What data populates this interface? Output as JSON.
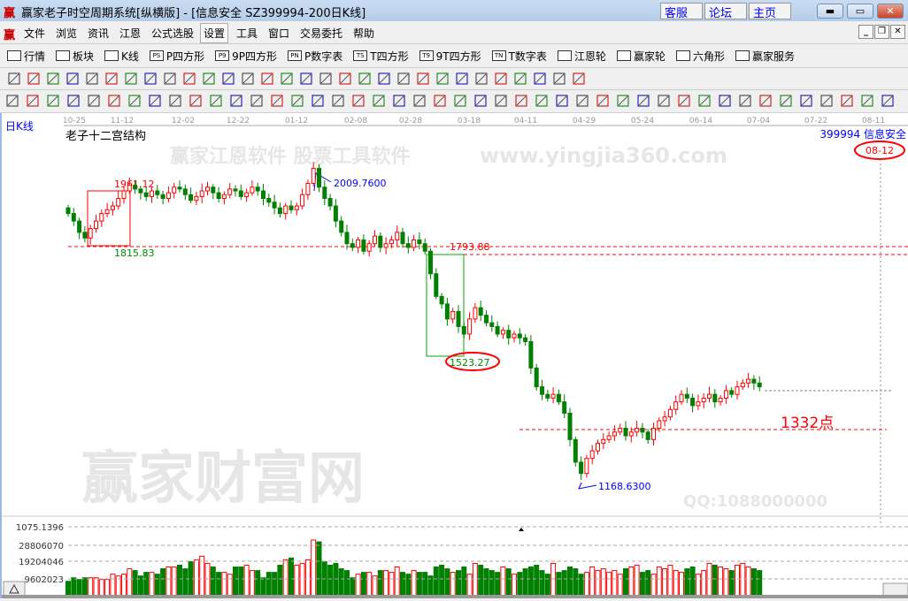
{
  "window": {
    "title": "赢家老子时空周期系统[纵横版] - [信息安全  SZ399994-200日K线]",
    "links": [
      "客服",
      "论坛",
      "主页"
    ],
    "logo": "赢"
  },
  "menu": [
    "文件",
    "浏览",
    "资讯",
    "江恩",
    "公式选股",
    "设置",
    "工具",
    "窗口",
    "交易委托",
    "帮助"
  ],
  "menu_selected": "设置",
  "toolbar1": [
    {
      "icon": "quote-table-icon",
      "label": "行情"
    },
    {
      "icon": "sector-icon",
      "label": "板块"
    },
    {
      "icon": "candlestick-icon",
      "label": "K线"
    },
    {
      "icon": "PS",
      "label": "P四方形"
    },
    {
      "icon": "P9",
      "label": "9P四方形"
    },
    {
      "icon": "PN",
      "label": "P数字表"
    },
    {
      "icon": "TS",
      "label": "T四方形"
    },
    {
      "icon": "T9",
      "label": "9T四方形"
    },
    {
      "icon": "TN",
      "label": "T数字表"
    },
    {
      "icon": "gann-wheel-icon",
      "label": "江恩轮"
    },
    {
      "icon": "big-wheel-icon",
      "label": "赢家轮"
    },
    {
      "icon": "hexagon-icon",
      "label": "六角形"
    },
    {
      "icon": "dollar-icon",
      "label": "赢家服务"
    }
  ],
  "chart": {
    "period_label": "日K线",
    "indicator_title": "老子十二宫结构",
    "symbol_label": "399994 信息安全",
    "cursor_date": "08-12",
    "date_ticks": [
      "10-25",
      "11-12",
      "12-02",
      "12-22",
      "01-12",
      "02-08",
      "02-28",
      "03-18",
      "04-11",
      "04-29",
      "05-24",
      "06-14",
      "07-04",
      "07-22",
      "08-11"
    ],
    "annotations": {
      "high1": "1961.12",
      "low1": "1815.83",
      "peak": "2009.7600",
      "high2": "1793.88",
      "low2": "1523.27",
      "bottom": "1168.6300",
      "target": "1332点"
    },
    "watermark": [
      "赢家财富网",
      "赢家江恩软件 股票工具软件",
      "www.yingjia360.com",
      "QQ:1088000000"
    ],
    "colors": {
      "up": "#ff0000",
      "down": "#008000",
      "annotation": "#ff0000",
      "label_blue": "#0000ff"
    }
  },
  "chart_data": {
    "type": "candlestick",
    "closes": [
      1880,
      1860,
      1830,
      1815,
      1840,
      1860,
      1880,
      1890,
      1900,
      1920,
      1940,
      1955,
      1945,
      1935,
      1925,
      1940,
      1930,
      1920,
      1935,
      1950,
      1945,
      1930,
      1915,
      1925,
      1940,
      1950,
      1935,
      1920,
      1930,
      1945,
      1940,
      1925,
      1935,
      1950,
      1940,
      1920,
      1910,
      1895,
      1880,
      1900,
      1890,
      1900,
      1930,
      1960,
      2000,
      1950,
      1920,
      1900,
      1860,
      1830,
      1800,
      1790,
      1810,
      1780,
      1800,
      1820,
      1790,
      1800,
      1810,
      1830,
      1800,
      1790,
      1810,
      1800,
      1780,
      1720,
      1660,
      1640,
      1600,
      1620,
      1580,
      1560,
      1600,
      1630,
      1610,
      1590,
      1580,
      1560,
      1570,
      1550,
      1560,
      1550,
      1540,
      1470,
      1420,
      1400,
      1390,
      1400,
      1380,
      1350,
      1280,
      1220,
      1190,
      1230,
      1250,
      1270,
      1280,
      1290,
      1300,
      1310,
      1290,
      1300,
      1310,
      1300,
      1280,
      1310,
      1330,
      1340,
      1360,
      1380,
      1400,
      1390,
      1370,
      1380,
      1390,
      1400,
      1380,
      1390,
      1410,
      1400,
      1420,
      1430,
      1440,
      1430,
      1420
    ],
    "volumes": [
      8,
      10,
      9,
      10,
      10,
      10,
      9,
      9,
      12,
      11,
      12,
      15,
      14,
      11,
      13,
      13,
      12,
      15,
      16,
      16,
      17,
      15,
      19,
      20,
      22,
      18,
      16,
      13,
      13,
      12,
      16,
      16,
      17,
      14,
      14,
      10,
      13,
      13,
      17,
      20,
      21,
      17,
      18,
      20,
      31,
      30,
      19,
      17,
      18,
      15,
      14,
      10,
      12,
      13,
      13,
      11,
      14,
      14,
      13,
      16,
      13,
      12,
      14,
      13,
      13,
      11,
      16,
      17,
      15,
      13,
      14,
      16,
      12,
      18,
      17,
      15,
      14,
      13,
      16,
      15,
      12,
      13,
      15,
      16,
      17,
      14,
      12,
      18,
      13,
      14,
      16,
      15,
      12,
      13,
      16,
      14,
      15,
      13,
      14,
      12,
      15,
      16,
      17,
      13,
      14,
      12,
      16,
      15,
      17,
      14,
      13,
      15,
      16,
      12,
      14,
      18,
      17,
      16,
      15,
      14,
      17,
      18,
      16,
      15,
      14
    ],
    "volume_unit_multiplier": 1000000,
    "price_range": [
      1168.63,
      2009.76
    ],
    "volume_ticks": [
      "9602023",
      "19204046",
      "28806070",
      "1075.1396"
    ],
    "reference_levels": {
      "high1": 1961.12,
      "low1": 1815.83,
      "peak": 2009.76,
      "high2": 1793.88,
      "low2": 1523.27,
      "bottom": 1168.63,
      "target": 1332
    }
  }
}
